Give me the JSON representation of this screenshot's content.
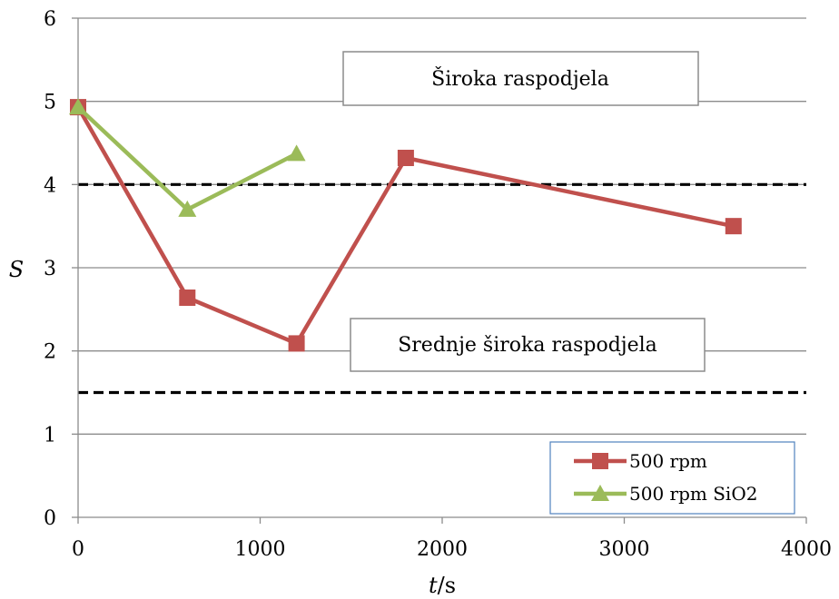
{
  "chart_data": {
    "type": "line",
    "xlabel": "t",
    "xunit": "/s",
    "ylabel": "S",
    "xlim": [
      0,
      4000
    ],
    "ylim": [
      0,
      6
    ],
    "xticks": [
      "0",
      "1000",
      "2000",
      "3000",
      "4000"
    ],
    "yticks": [
      "0",
      "1",
      "2",
      "3",
      "4",
      "5",
      "6"
    ],
    "grid": "horizontal",
    "legend_position": "bottom-right",
    "series": [
      {
        "name": "500 rpm",
        "color": "#c0504d",
        "marker": "square",
        "x": [
          0,
          600,
          1200,
          1800,
          3600
        ],
        "y": [
          4.93,
          2.64,
          2.09,
          4.32,
          3.5
        ]
      },
      {
        "name": "500 rpm SiO2",
        "color": "#9bbb59",
        "marker": "triangle",
        "x": [
          0,
          600,
          1200
        ],
        "y": [
          4.93,
          3.7,
          4.37
        ]
      }
    ],
    "reference_lines": [
      {
        "y": 4.0,
        "style": "dashed",
        "color": "#000000"
      },
      {
        "y": 1.5,
        "style": "dashed",
        "color": "#000000"
      }
    ],
    "annotations": [
      {
        "text": "Široka raspodjela",
        "x": 2100,
        "y": 5.25
      },
      {
        "text": "Srednje široka raspodjela",
        "x": 2100,
        "y": 2.05
      }
    ]
  }
}
